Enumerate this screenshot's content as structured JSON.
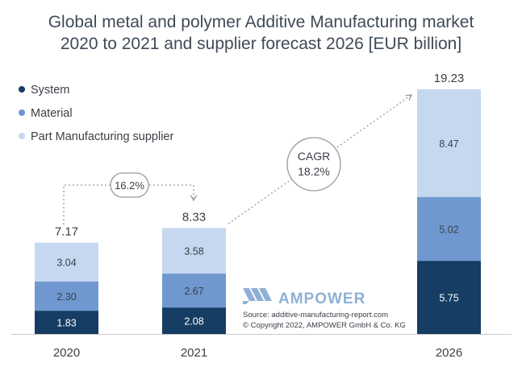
{
  "chart_data": {
    "type": "bar",
    "stacked": true,
    "title": "Global metal and polymer Additive Manufacturing market",
    "subtitle": "2020 to 2021 and supplier forecast 2026 [EUR billion]",
    "categories": [
      "2020",
      "2021",
      "2026"
    ],
    "totals": [
      "7.17",
      "8.33",
      "19.23"
    ],
    "series": [
      {
        "name": "System",
        "color": "#163d63",
        "values": [
          1.83,
          2.08,
          5.75
        ],
        "labels": [
          "1.83",
          "2.08",
          "5.75"
        ]
      },
      {
        "name": "Material",
        "color": "#6f98d0",
        "values": [
          2.3,
          2.67,
          5.02
        ],
        "labels": [
          "2.30",
          "2.67",
          "5.02"
        ]
      },
      {
        "name": "Part Manufacturing supplier",
        "color": "#c5d8ef",
        "values": [
          3.04,
          3.58,
          8.47
        ],
        "labels": [
          "3.04",
          "3.58",
          "8.47"
        ]
      }
    ],
    "legend_position": "top-left",
    "grid": false,
    "annotations": {
      "growth_2020_2021": "16.2%",
      "cagr_line1": "CAGR",
      "cagr_line2": "18.2%"
    },
    "logo_text": "AMPOWER",
    "source_line1": "Source: additive-manufacturing-report.com",
    "source_line2": "© Copyright 2022, AMPOWER GmbH & Co. KG"
  }
}
